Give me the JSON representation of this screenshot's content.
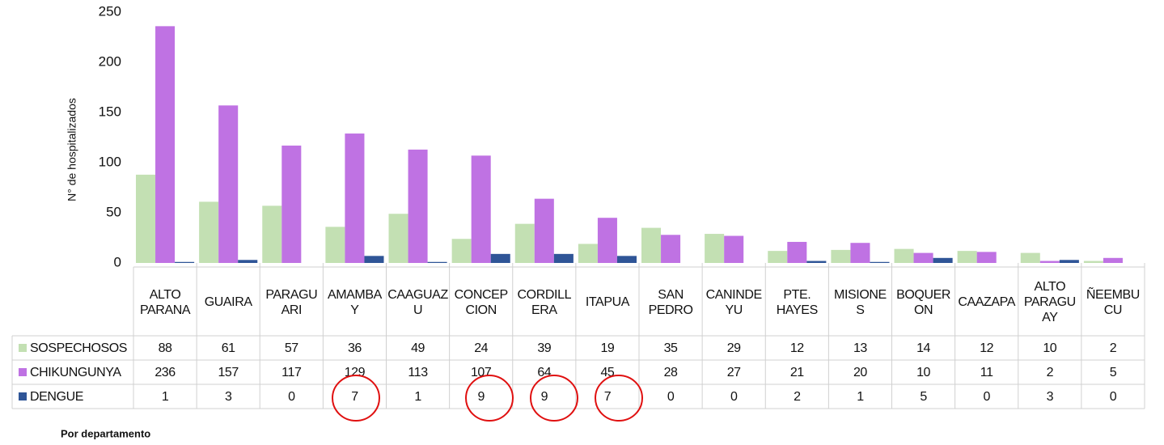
{
  "chart_data": {
    "type": "bar",
    "y_label": "N° de hospitalizados",
    "note": "Por departamento",
    "categories": [
      "ALTO\nPARANA",
      "GUAIRA",
      "PARAGU\nARI",
      "AMAMBA\nY",
      "CAAGUAZ\nU",
      "CONCEP\nCION",
      "CORDILL\nERA",
      "ITAPUA",
      "SAN\nPEDRO",
      "CANINDE\nYU",
      "PTE.\nHAYES",
      "MISIONE\nS",
      "BOQUER\nON",
      "CAAZAPA",
      "ALTO\nPARAGU\nAY",
      "ÑEEMBU\nCU"
    ],
    "series": [
      {
        "name": "SOSPECHOSOS",
        "color": "#c3e0b3",
        "values": [
          88,
          61,
          57,
          36,
          49,
          24,
          39,
          19,
          35,
          29,
          12,
          13,
          14,
          12,
          10,
          2
        ]
      },
      {
        "name": "CHIKUNGUNYA",
        "color": "#bf72e3",
        "values": [
          236,
          157,
          117,
          129,
          113,
          107,
          64,
          45,
          28,
          27,
          21,
          20,
          10,
          11,
          2,
          5
        ]
      },
      {
        "name": "DENGUE",
        "color": "#2f5597",
        "values": [
          1,
          3,
          0,
          7,
          1,
          9,
          9,
          7,
          0,
          0,
          2,
          1,
          5,
          0,
          3,
          0
        ]
      }
    ],
    "ylim": [
      0,
      250
    ],
    "yticks": [
      0,
      50,
      100,
      150,
      200,
      250
    ],
    "grid": false
  }
}
